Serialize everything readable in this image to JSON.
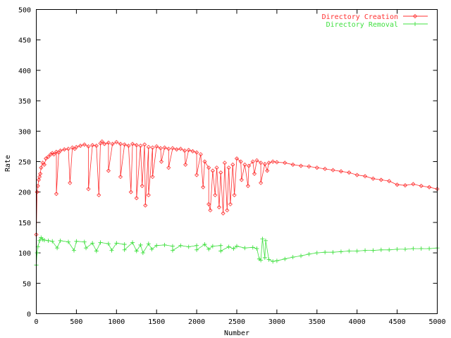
{
  "chart_data": {
    "type": "line",
    "title": "",
    "xlabel": "Number",
    "ylabel": "Rate",
    "xlim": [
      0,
      5000
    ],
    "ylim": [
      0,
      500
    ],
    "xticks": [
      0,
      500,
      1000,
      1500,
      2000,
      2500,
      3000,
      3500,
      4000,
      4500,
      5000
    ],
    "yticks": [
      0,
      50,
      100,
      150,
      200,
      250,
      300,
      350,
      400,
      450,
      500
    ],
    "grid": false,
    "legend": "top-right",
    "series": [
      {
        "name": "Directory Creation",
        "color": "#ff3030",
        "marker": "diamond",
        "x": [
          0,
          10,
          20,
          30,
          40,
          50,
          60,
          80,
          100,
          120,
          150,
          180,
          200,
          220,
          250,
          280,
          300,
          350,
          400,
          450,
          480,
          500,
          550,
          600,
          650,
          700,
          750,
          800,
          820,
          850,
          900,
          950,
          1000,
          1050,
          1100,
          1150,
          1200,
          1250,
          1300,
          1350,
          1400,
          1450,
          1500,
          1550,
          1600,
          1650,
          1700,
          1750,
          1800,
          1850,
          1900,
          1950,
          2000,
          2050,
          2100,
          2150,
          2200,
          2250,
          2300,
          2350,
          2400,
          2450,
          2500,
          2550,
          2600,
          2650,
          2700,
          2750,
          2800,
          2850,
          2900,
          2950,
          3000,
          3100,
          3200,
          3300,
          3400,
          3500,
          3600,
          3700,
          3800,
          3900,
          4000,
          4100,
          4200,
          4300,
          4400,
          4500,
          4600,
          4700,
          4800,
          4900,
          5000
        ],
        "y": [
          130,
          200,
          210,
          220,
          225,
          230,
          240,
          248,
          245,
          255,
          258,
          262,
          264,
          262,
          266,
          265,
          268,
          270,
          271,
          273,
          271,
          274,
          276,
          278,
          275,
          277,
          276,
          280,
          283,
          279,
          281,
          279,
          282,
          279,
          278,
          276,
          279,
          277,
          276,
          278,
          274,
          273,
          275,
          272,
          273,
          271,
          272,
          270,
          271,
          268,
          269,
          267,
          265,
          262,
          250,
          240,
          235,
          240,
          232,
          248,
          240,
          245,
          255,
          250,
          245,
          243,
          250,
          252,
          248,
          246,
          248,
          250,
          249,
          248,
          245,
          243,
          242,
          240,
          238,
          236,
          234,
          232,
          228,
          226,
          222,
          220,
          218,
          212,
          211,
          213,
          210,
          208,
          205
        ],
        "dips": [
          {
            "x": 250,
            "y": 197
          },
          {
            "x": 420,
            "y": 215
          },
          {
            "x": 650,
            "y": 205
          },
          {
            "x": 780,
            "y": 195
          },
          {
            "x": 900,
            "y": 235
          },
          {
            "x": 1050,
            "y": 225
          },
          {
            "x": 1180,
            "y": 200
          },
          {
            "x": 1250,
            "y": 190
          },
          {
            "x": 1320,
            "y": 210
          },
          {
            "x": 1360,
            "y": 178
          },
          {
            "x": 1400,
            "y": 195
          },
          {
            "x": 1450,
            "y": 225
          },
          {
            "x": 1560,
            "y": 250
          },
          {
            "x": 1650,
            "y": 240
          },
          {
            "x": 1860,
            "y": 245
          },
          {
            "x": 2000,
            "y": 228
          },
          {
            "x": 2080,
            "y": 208
          },
          {
            "x": 2150,
            "y": 180
          },
          {
            "x": 2170,
            "y": 170
          },
          {
            "x": 2230,
            "y": 195
          },
          {
            "x": 2280,
            "y": 175
          },
          {
            "x": 2330,
            "y": 165
          },
          {
            "x": 2380,
            "y": 170
          },
          {
            "x": 2420,
            "y": 180
          },
          {
            "x": 2470,
            "y": 195
          },
          {
            "x": 2560,
            "y": 220
          },
          {
            "x": 2640,
            "y": 210
          },
          {
            "x": 2720,
            "y": 230
          },
          {
            "x": 2800,
            "y": 215
          },
          {
            "x": 2880,
            "y": 235
          }
        ]
      },
      {
        "name": "Directory Removal",
        "color": "#40e040",
        "marker": "plus",
        "x": [
          0,
          10,
          20,
          40,
          60,
          80,
          100,
          150,
          200,
          300,
          400,
          500,
          600,
          700,
          800,
          900,
          1000,
          1100,
          1200,
          1300,
          1400,
          1500,
          1600,
          1700,
          1800,
          1900,
          2000,
          2100,
          2200,
          2300,
          2400,
          2500,
          2600,
          2700,
          2750,
          2780,
          2800,
          2850,
          2900,
          2950,
          3000,
          3100,
          3200,
          3300,
          3400,
          3500,
          3600,
          3700,
          3800,
          3900,
          4000,
          4100,
          4200,
          4300,
          4400,
          4500,
          4600,
          4700,
          4800,
          4900,
          5000
        ],
        "y": [
          80,
          100,
          110,
          120,
          125,
          122,
          121,
          120,
          119,
          120,
          118,
          119,
          118,
          116,
          117,
          115,
          116,
          114,
          117,
          113,
          115,
          112,
          113,
          111,
          112,
          110,
          112,
          114,
          111,
          112,
          110,
          111,
          108,
          109,
          107,
          90,
          88,
          92,
          89,
          86,
          87,
          90,
          93,
          95,
          98,
          100,
          101,
          101,
          102,
          103,
          103,
          104,
          104,
          105,
          105,
          106,
          106,
          107,
          107,
          107,
          108
        ],
        "dips": [
          {
            "x": 260,
            "y": 108
          },
          {
            "x": 470,
            "y": 104
          },
          {
            "x": 620,
            "y": 108
          },
          {
            "x": 750,
            "y": 103
          },
          {
            "x": 940,
            "y": 104
          },
          {
            "x": 1100,
            "y": 105
          },
          {
            "x": 1250,
            "y": 103
          },
          {
            "x": 1330,
            "y": 100
          },
          {
            "x": 1440,
            "y": 106
          },
          {
            "x": 1700,
            "y": 104
          },
          {
            "x": 2000,
            "y": 105
          },
          {
            "x": 2150,
            "y": 106
          },
          {
            "x": 2300,
            "y": 103
          },
          {
            "x": 2460,
            "y": 107
          },
          {
            "x": 2820,
            "y": 123
          },
          {
            "x": 2860,
            "y": 120
          }
        ]
      }
    ]
  }
}
